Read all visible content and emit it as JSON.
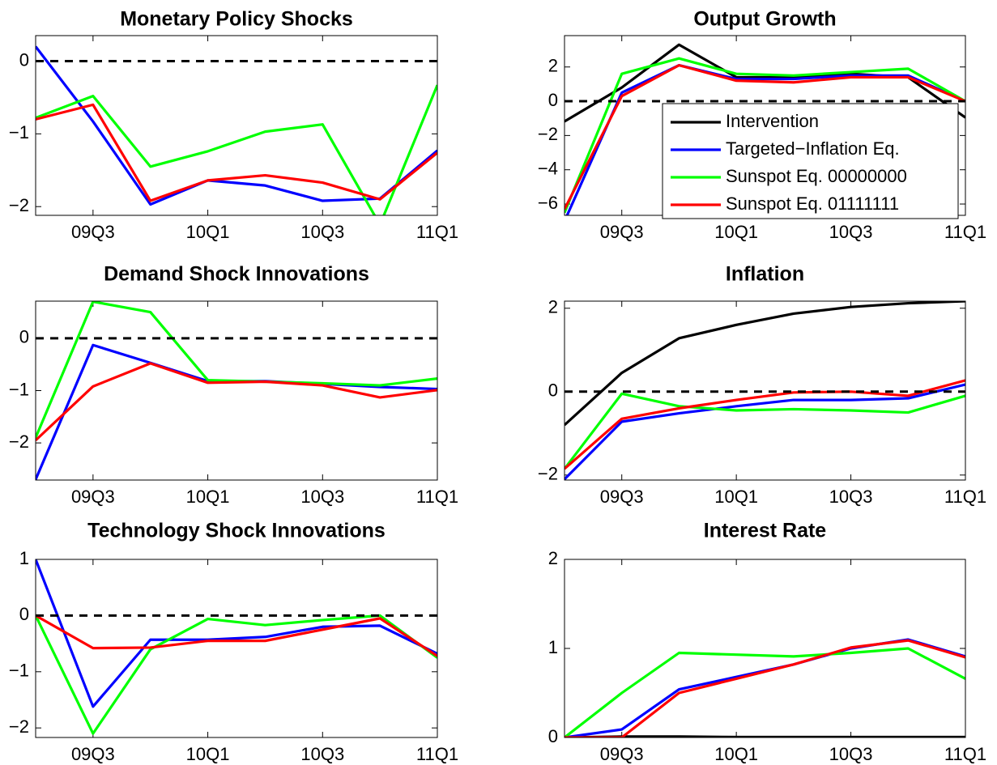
{
  "chart_data": [
    {
      "type": "line",
      "title": "Monetary Policy Shocks",
      "categories": [
        null,
        "09Q3",
        null,
        "10Q1",
        null,
        "10Q3",
        null,
        "11Q1"
      ],
      "ylim": [
        -2.12,
        0.35
      ],
      "yticks": [
        {
          "value": -2,
          "label": "−2"
        },
        {
          "value": -1,
          "label": "−1"
        },
        0
      ],
      "hline": 0,
      "series": [
        {
          "color": "#0000ff",
          "values": [
            0.2,
            -0.83,
            -1.97,
            -1.64,
            -1.71,
            -1.92,
            -1.89,
            -1.23
          ]
        },
        {
          "color": "#00ff00",
          "values": [
            -0.78,
            -0.48,
            -1.45,
            -1.24,
            -0.97,
            -0.87,
            -2.25,
            -0.33
          ]
        },
        {
          "color": "#ff0000",
          "values": [
            -0.8,
            -0.6,
            -1.92,
            -1.64,
            -1.57,
            -1.67,
            -1.9,
            -1.26
          ]
        }
      ]
    },
    {
      "type": "line",
      "title": "Output Growth",
      "categories": [
        null,
        "09Q3",
        null,
        "10Q1",
        null,
        "10Q3",
        null,
        "11Q1"
      ],
      "ylim": [
        -6.66,
        3.83
      ],
      "yticks": [
        {
          "value": -6,
          "label": "−6"
        },
        {
          "value": -4,
          "label": "−4"
        },
        {
          "value": -2,
          "label": "−2"
        },
        0,
        2
      ],
      "hline": 0,
      "legend": "lower right",
      "series": [
        {
          "name": "Intervention",
          "color": "#000000",
          "values": [
            -1.18,
            0.8,
            3.3,
            1.4,
            1.4,
            1.6,
            1.4,
            -0.95
          ]
        },
        {
          "name": "Targeted−Inflation Eq.",
          "color": "#0000ff",
          "values": [
            -7.0,
            0.5,
            2.1,
            1.3,
            1.3,
            1.5,
            1.5,
            0.0
          ]
        },
        {
          "name": "Sunspot Eq. 00000000",
          "color": "#00ff00",
          "values": [
            -6.5,
            1.6,
            2.5,
            1.6,
            1.5,
            1.7,
            1.9,
            0.0
          ]
        },
        {
          "name": "Sunspot Eq. 01111111",
          "color": "#ff0000",
          "values": [
            -6.3,
            0.3,
            2.1,
            1.2,
            1.1,
            1.4,
            1.4,
            0.0
          ]
        }
      ]
    },
    {
      "type": "line",
      "title": "Demand Shock Innovations",
      "categories": [
        null,
        "09Q3",
        null,
        "10Q1",
        null,
        "10Q3",
        null,
        "11Q1"
      ],
      "ylim": [
        -2.71,
        0.71
      ],
      "yticks": [
        {
          "value": -2,
          "label": "−2"
        },
        {
          "value": -1,
          "label": "−1"
        },
        0
      ],
      "hline": 0,
      "series": [
        {
          "color": "#0000ff",
          "values": [
            -2.7,
            -0.13,
            -0.47,
            -0.82,
            -0.82,
            -0.87,
            -0.93,
            -0.97
          ]
        },
        {
          "color": "#00ff00",
          "values": [
            -1.9,
            0.7,
            0.5,
            -0.8,
            -0.83,
            -0.86,
            -0.9,
            -0.77
          ]
        },
        {
          "color": "#ff0000",
          "values": [
            -1.95,
            -0.92,
            -0.48,
            -0.85,
            -0.83,
            -0.9,
            -1.13,
            -0.99
          ]
        }
      ]
    },
    {
      "type": "line",
      "title": "Inflation",
      "categories": [
        null,
        "09Q3",
        null,
        "10Q1",
        null,
        "10Q3",
        null,
        "11Q1"
      ],
      "ylim": [
        -2.12,
        2.17
      ],
      "yticks": [
        {
          "value": -2,
          "label": "−2"
        },
        0,
        2
      ],
      "hline": 0,
      "series": [
        {
          "color": "#000000",
          "values": [
            -0.8,
            0.45,
            1.28,
            1.6,
            1.87,
            2.03,
            2.12,
            2.17
          ]
        },
        {
          "color": "#0000ff",
          "values": [
            -2.1,
            -0.72,
            -0.52,
            -0.35,
            -0.2,
            -0.2,
            -0.16,
            0.17
          ]
        },
        {
          "color": "#00ff00",
          "values": [
            -1.85,
            -0.05,
            -0.35,
            -0.45,
            -0.42,
            -0.45,
            -0.5,
            -0.1
          ]
        },
        {
          "color": "#ff0000",
          "values": [
            -1.85,
            -0.65,
            -0.4,
            -0.2,
            -0.02,
            0.0,
            -0.1,
            0.27
          ]
        }
      ]
    },
    {
      "type": "line",
      "title": "Technology Shock Innovations",
      "categories": [
        null,
        "09Q3",
        null,
        "10Q1",
        null,
        "10Q3",
        null,
        "11Q1"
      ],
      "ylim": [
        -2.17,
        1.0
      ],
      "yticks": [
        {
          "value": -2,
          "label": "−2"
        },
        {
          "value": -1,
          "label": "−1"
        },
        0,
        1
      ],
      "hline": 0,
      "series": [
        {
          "color": "#0000ff",
          "values": [
            1.0,
            -1.62,
            -0.43,
            -0.43,
            -0.38,
            -0.2,
            -0.18,
            -0.68
          ]
        },
        {
          "color": "#00ff00",
          "values": [
            0.0,
            -2.1,
            -0.6,
            -0.06,
            -0.17,
            -0.08,
            0.0,
            -0.75
          ]
        },
        {
          "color": "#ff0000",
          "values": [
            0.0,
            -0.58,
            -0.57,
            -0.45,
            -0.45,
            -0.25,
            -0.05,
            -0.72
          ]
        }
      ]
    },
    {
      "type": "line",
      "title": "Interest Rate",
      "categories": [
        null,
        "09Q3",
        null,
        "10Q1",
        null,
        "10Q3",
        null,
        "11Q1"
      ],
      "ylim": [
        0,
        2
      ],
      "yticks": [
        0,
        1,
        2
      ],
      "series": [
        {
          "color": "#000000",
          "values": [
            0,
            0.01,
            0.01,
            0.005,
            0.005,
            0.005,
            0.005,
            0.005
          ]
        },
        {
          "color": "#0000ff",
          "values": [
            0,
            0.09,
            0.54,
            0.68,
            0.82,
            1.0,
            1.1,
            0.91
          ]
        },
        {
          "color": "#00ff00",
          "values": [
            0,
            0.5,
            0.95,
            0.93,
            0.91,
            0.95,
            1.0,
            0.66
          ]
        },
        {
          "color": "#ff0000",
          "values": [
            0,
            0.0,
            0.5,
            0.66,
            0.82,
            1.01,
            1.09,
            0.9
          ]
        }
      ]
    }
  ]
}
